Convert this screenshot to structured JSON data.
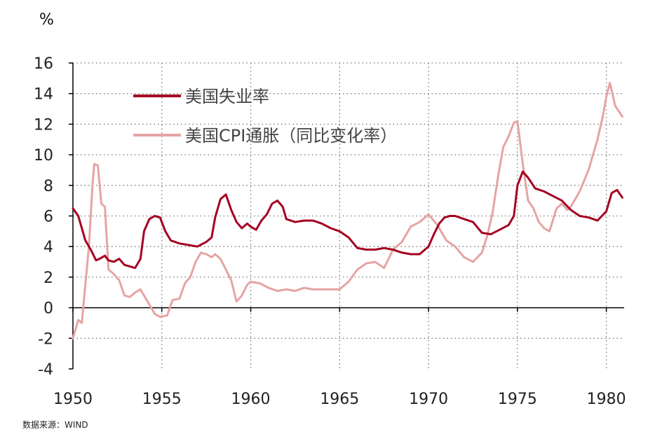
{
  "chart_data": {
    "type": "line",
    "ylabel": "%",
    "ylim": [
      -4,
      16
    ],
    "xlim": [
      1950,
      1981
    ],
    "yticks": [
      -4,
      -2,
      0,
      2,
      4,
      6,
      8,
      10,
      12,
      14,
      16
    ],
    "xticks": [
      1950,
      1955,
      1960,
      1965,
      1970,
      1975,
      1980
    ],
    "grid": "dotted",
    "legend_position": "top-left",
    "source": "数据来源：WIND",
    "series": [
      {
        "name": "美国失业率",
        "color": "#a50021",
        "x": [
          1950.0,
          1950.3,
          1950.5,
          1950.7,
          1951.0,
          1951.3,
          1951.5,
          1951.8,
          1952.0,
          1952.3,
          1952.6,
          1952.9,
          1953.2,
          1953.5,
          1953.8,
          1954.0,
          1954.3,
          1954.6,
          1954.9,
          1955.2,
          1955.5,
          1956.0,
          1956.5,
          1957.0,
          1957.5,
          1957.8,
          1958.0,
          1958.3,
          1958.6,
          1958.9,
          1959.2,
          1959.5,
          1959.8,
          1960.0,
          1960.3,
          1960.6,
          1960.9,
          1961.2,
          1961.5,
          1961.8,
          1962.0,
          1962.5,
          1963.0,
          1963.5,
          1964.0,
          1964.5,
          1965.0,
          1965.5,
          1966.0,
          1966.5,
          1967.0,
          1967.5,
          1968.0,
          1968.5,
          1969.0,
          1969.5,
          1970.0,
          1970.3,
          1970.6,
          1970.9,
          1971.2,
          1971.5,
          1972.0,
          1972.5,
          1973.0,
          1973.5,
          1974.0,
          1974.5,
          1974.8,
          1975.0,
          1975.3,
          1975.6,
          1976.0,
          1976.5,
          1977.0,
          1977.5,
          1978.0,
          1978.5,
          1979.0,
          1979.5,
          1980.0,
          1980.3,
          1980.6,
          1980.9
        ],
        "values": [
          6.5,
          6.0,
          5.2,
          4.4,
          3.8,
          3.1,
          3.2,
          3.4,
          3.1,
          3.0,
          3.2,
          2.8,
          2.7,
          2.6,
          3.2,
          5.0,
          5.8,
          6.0,
          5.9,
          5.0,
          4.4,
          4.2,
          4.1,
          4.0,
          4.3,
          4.6,
          5.9,
          7.1,
          7.4,
          6.4,
          5.6,
          5.2,
          5.5,
          5.3,
          5.1,
          5.7,
          6.1,
          6.8,
          7.0,
          6.6,
          5.8,
          5.6,
          5.7,
          5.7,
          5.5,
          5.2,
          5.0,
          4.6,
          3.9,
          3.8,
          3.8,
          3.9,
          3.8,
          3.6,
          3.5,
          3.5,
          4.0,
          4.8,
          5.5,
          5.9,
          6.0,
          6.0,
          5.8,
          5.6,
          4.9,
          4.8,
          5.1,
          5.4,
          6.0,
          8.0,
          8.9,
          8.5,
          7.8,
          7.6,
          7.3,
          7.0,
          6.4,
          6.0,
          5.9,
          5.7,
          6.3,
          7.5,
          7.7,
          7.2
        ]
      },
      {
        "name": "美国CPI通胀（同比变化率）",
        "color": "#e6a4a4",
        "x": [
          1950.0,
          1950.3,
          1950.5,
          1950.7,
          1950.9,
          1951.1,
          1951.2,
          1951.4,
          1951.6,
          1951.8,
          1952.0,
          1952.3,
          1952.6,
          1952.9,
          1953.2,
          1953.5,
          1953.8,
          1954.0,
          1954.3,
          1954.6,
          1954.9,
          1955.3,
          1955.6,
          1956.0,
          1956.3,
          1956.6,
          1956.9,
          1957.2,
          1957.5,
          1957.8,
          1958.0,
          1958.3,
          1958.6,
          1958.9,
          1959.2,
          1959.5,
          1959.8,
          1960.0,
          1960.5,
          1961.0,
          1961.5,
          1962.0,
          1962.5,
          1963.0,
          1963.5,
          1964.0,
          1964.5,
          1965.0,
          1965.5,
          1966.0,
          1966.5,
          1967.0,
          1967.5,
          1968.0,
          1968.5,
          1969.0,
          1969.5,
          1970.0,
          1970.5,
          1971.0,
          1971.5,
          1972.0,
          1972.5,
          1973.0,
          1973.3,
          1973.6,
          1973.9,
          1974.2,
          1974.5,
          1974.8,
          1975.0,
          1975.3,
          1975.6,
          1975.9,
          1976.2,
          1976.5,
          1976.8,
          1977.2,
          1977.5,
          1977.8,
          1978.0,
          1978.5,
          1979.0,
          1979.5,
          1979.8,
          1980.0,
          1980.2,
          1980.5,
          1980.9
        ],
        "values": [
          -2.0,
          -0.8,
          -1.0,
          1.5,
          4.0,
          8.0,
          9.4,
          9.3,
          6.8,
          6.6,
          2.5,
          2.2,
          1.8,
          0.8,
          0.7,
          1.0,
          1.2,
          0.8,
          0.2,
          -0.4,
          -0.6,
          -0.5,
          0.5,
          0.6,
          1.6,
          2.0,
          3.0,
          3.6,
          3.5,
          3.3,
          3.5,
          3.2,
          2.5,
          1.8,
          0.4,
          0.8,
          1.5,
          1.7,
          1.6,
          1.3,
          1.1,
          1.2,
          1.1,
          1.3,
          1.2,
          1.2,
          1.2,
          1.2,
          1.7,
          2.5,
          2.9,
          3.0,
          2.6,
          3.8,
          4.3,
          5.3,
          5.6,
          6.1,
          5.4,
          4.4,
          4.0,
          3.3,
          3.0,
          3.6,
          4.7,
          6.2,
          8.5,
          10.5,
          11.2,
          12.1,
          12.2,
          9.4,
          7.0,
          6.5,
          5.6,
          5.2,
          5.0,
          6.5,
          6.8,
          6.4,
          6.6,
          7.6,
          9.0,
          11.0,
          12.5,
          13.8,
          14.7,
          13.2,
          12.5
        ]
      }
    ]
  }
}
